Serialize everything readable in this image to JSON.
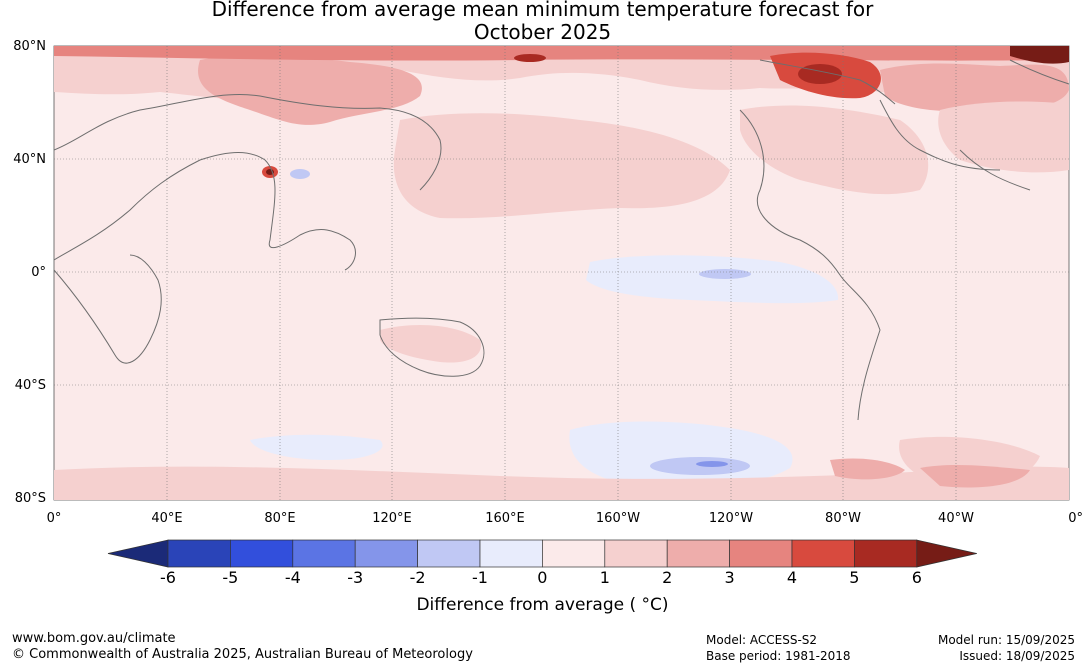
{
  "title_line1": "Difference from average mean minimum temperature forecast for",
  "title_line2": "October 2025",
  "lat_labels": [
    "80°N",
    "40°N",
    "0°",
    "40°S",
    "80°S"
  ],
  "lon_labels": [
    "0°",
    "40°E",
    "80°E",
    "120°E",
    "160°E",
    "160°W",
    "120°W",
    "80°W",
    "40°W",
    "0°"
  ],
  "colorbar": {
    "ticks": [
      "-6",
      "-5",
      "-4",
      "-3",
      "-2",
      "-1",
      "0",
      "1",
      "2",
      "3",
      "4",
      "5",
      "6"
    ],
    "colors": [
      "#1b2a78",
      "#2a44b8",
      "#324fdc",
      "#5b74e4",
      "#8495ea",
      "#c0c8f4",
      "#e8ecfc",
      "#fbeaea",
      "#f5d0cf",
      "#eeadab",
      "#e6847f",
      "#d84a3e",
      "#a82a22",
      "#761c16"
    ],
    "label": "Difference from average ( °C)"
  },
  "footer": {
    "website": "www.bom.gov.au/climate",
    "copyright": "© Commonwealth of Australia 2025, Australian Bureau of Meteorology",
    "model": "Model: ACCESS-S2",
    "base_period": "Base period: 1981-2018",
    "model_run": "Model run: 15/09/2025",
    "issued": "Issued: 18/09/2025"
  }
}
